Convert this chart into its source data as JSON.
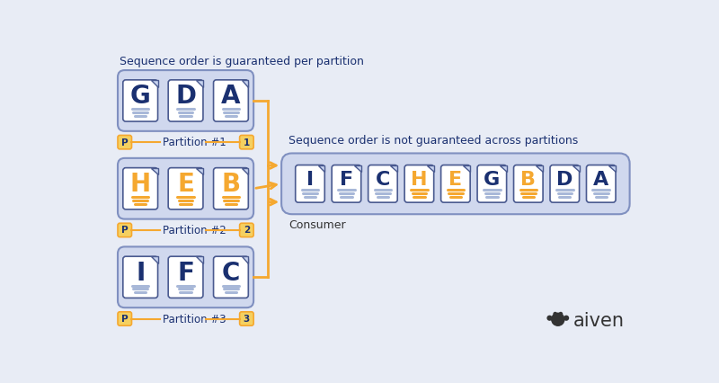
{
  "bg_color": "#e8ecf5",
  "title_left": "Sequence order is guaranteed per partition",
  "title_right": "Sequence order is not guaranteed across partitions",
  "consumer_label": "Consumer",
  "partition_labels": [
    "Partition #1",
    "Partition #2",
    "Partition #3"
  ],
  "partition_numbers": [
    "1",
    "2",
    "3"
  ],
  "partition1_letters": [
    "G",
    "D",
    "A"
  ],
  "partition2_letters": [
    "H",
    "E",
    "B"
  ],
  "partition3_letters": [
    "I",
    "F",
    "C"
  ],
  "consumer_letters": [
    "I",
    "F",
    "C",
    "H",
    "E",
    "G",
    "B",
    "D",
    "A"
  ],
  "partition_box_color": "#d0d8ee",
  "consumer_box_color": "#d0d8ee",
  "orange_color": "#f5a830",
  "p1_letter_color": "#1a3070",
  "p2_letter_color": "#f5a830",
  "p3_letter_color": "#1a3070",
  "consumer_letter_colors": [
    "#1a3070",
    "#1a3070",
    "#1a3070",
    "#f5a830",
    "#f5a830",
    "#1a3070",
    "#f5a830",
    "#1a3070",
    "#1a3070"
  ],
  "dark_navy": "#1a3070",
  "aiven_text_color": "#333333",
  "label_color": "#333333",
  "badge_color": "#f5d060"
}
